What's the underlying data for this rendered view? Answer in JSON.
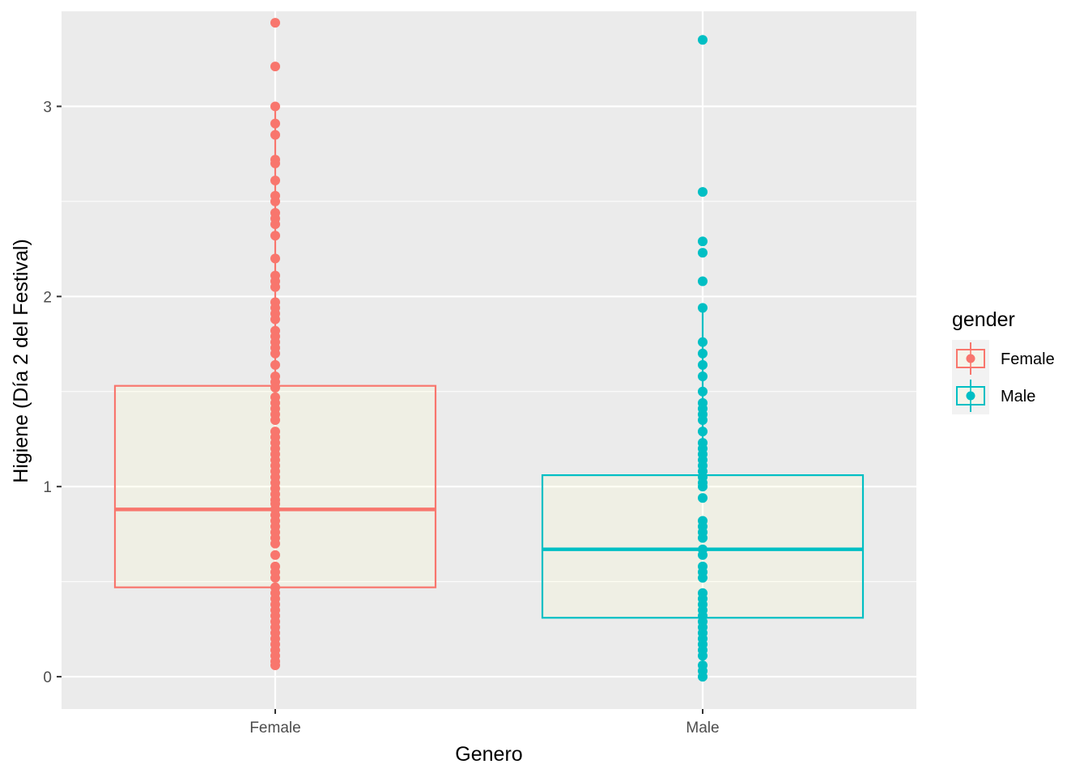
{
  "chart_data": {
    "type": "boxplot",
    "xlabel": "Genero",
    "ylabel": "Higiene (Día 2 del Festival)",
    "categories": [
      "Female",
      "Male"
    ],
    "ylim": [
      -0.17,
      3.5
    ],
    "y_ticks": [
      0,
      1,
      2,
      3
    ],
    "grid": true,
    "legend": {
      "title": "gender",
      "position": "right",
      "entries": [
        {
          "label": "Female",
          "color": "#F8766D"
        },
        {
          "label": "Male",
          "color": "#00BFC4"
        }
      ]
    },
    "box_fill": "#FFFFCC",
    "series": [
      {
        "name": "Female",
        "color": "#F8766D",
        "box": {
          "q1": 0.47,
          "median": 0.88,
          "q3": 1.53,
          "whisker_low": 0.06,
          "whisker_high": 3.0
        },
        "points": [
          3.44,
          3.21,
          3.0,
          2.91,
          2.85,
          2.72,
          2.7,
          2.61,
          2.53,
          2.5,
          2.44,
          2.41,
          2.38,
          2.32,
          2.2,
          2.11,
          2.08,
          2.05,
          1.97,
          1.94,
          1.91,
          1.88,
          1.82,
          1.79,
          1.76,
          1.73,
          1.7,
          1.64,
          1.58,
          1.55,
          1.52,
          1.47,
          1.44,
          1.41,
          1.38,
          1.35,
          1.29,
          1.26,
          1.23,
          1.2,
          1.17,
          1.14,
          1.11,
          1.08,
          1.05,
          1.02,
          0.99,
          0.96,
          0.93,
          0.91,
          0.88,
          0.85,
          0.82,
          0.79,
          0.76,
          0.73,
          0.7,
          0.64,
          0.58,
          0.55,
          0.52,
          0.47,
          0.44,
          0.41,
          0.38,
          0.35,
          0.32,
          0.29,
          0.26,
          0.23,
          0.2,
          0.17,
          0.14,
          0.11,
          0.08,
          0.06
        ]
      },
      {
        "name": "Male",
        "color": "#00BFC4",
        "box": {
          "q1": 0.31,
          "median": 0.67,
          "q3": 1.06,
          "whisker_low": 0.0,
          "whisker_high": 1.94
        },
        "points": [
          3.35,
          2.55,
          2.29,
          2.23,
          2.08,
          1.94,
          1.76,
          1.7,
          1.64,
          1.58,
          1.5,
          1.44,
          1.41,
          1.38,
          1.35,
          1.29,
          1.23,
          1.2,
          1.17,
          1.14,
          1.11,
          1.08,
          1.05,
          1.02,
          1.0,
          0.94,
          0.82,
          0.79,
          0.76,
          0.73,
          0.67,
          0.64,
          0.58,
          0.55,
          0.52,
          0.44,
          0.41,
          0.38,
          0.35,
          0.32,
          0.29,
          0.26,
          0.23,
          0.2,
          0.17,
          0.14,
          0.11,
          0.06,
          0.03,
          0.0
        ]
      }
    ]
  }
}
